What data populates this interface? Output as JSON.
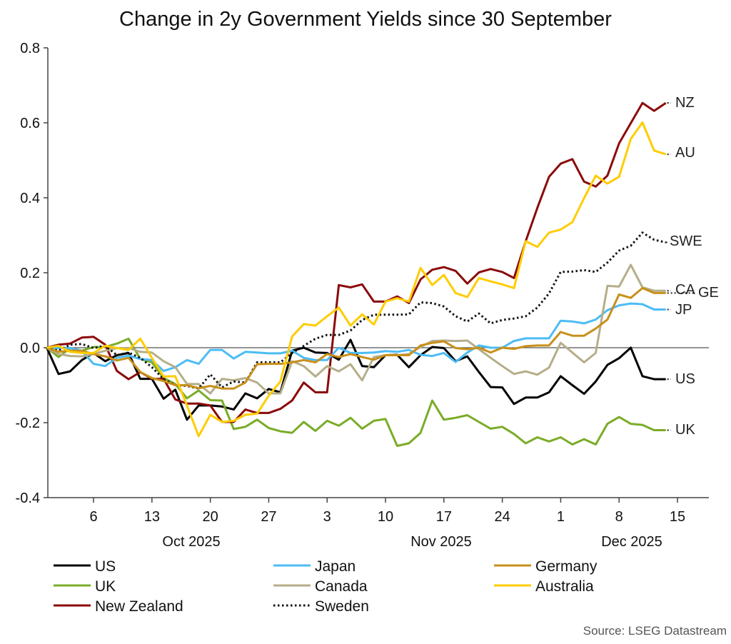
{
  "chart_data": {
    "type": "line",
    "title": "Change in 2y Government Yields since 30 September",
    "source": "Source: LSEG Datastream",
    "ylim": [
      -0.4,
      0.8
    ],
    "yticks": [
      "0.8",
      "0.6",
      "0.4",
      "0.2",
      "0.0",
      "-0.2",
      "-0.4"
    ],
    "ytick_values": [
      0.8,
      0.6,
      0.4,
      0.2,
      0,
      -0.2,
      -0.4
    ],
    "xtick_labels": [
      "6",
      "13",
      "20",
      "27",
      "3",
      "10",
      "17",
      "24",
      "1",
      "8",
      "15"
    ],
    "xtick_dates": [
      "2025-10-06",
      "2025-10-13",
      "2025-10-20",
      "2025-10-27",
      "2025-11-03",
      "2025-11-10",
      "2025-11-17",
      "2025-11-24",
      "2025-12-01",
      "2025-12-08",
      "2025-12-15"
    ],
    "month_labels": [
      "Oct 2025",
      "Nov 2025",
      "Dec 2025"
    ],
    "grid": false,
    "legend_position": "bottom",
    "x": [
      "2025-09-30",
      "2025-10-01",
      "2025-10-02",
      "2025-10-03",
      "2025-10-06",
      "2025-10-07",
      "2025-10-08",
      "2025-10-09",
      "2025-10-10",
      "2025-10-13",
      "2025-10-14",
      "2025-10-15",
      "2025-10-16",
      "2025-10-17",
      "2025-10-20",
      "2025-10-21",
      "2025-10-22",
      "2025-10-23",
      "2025-10-24",
      "2025-10-27",
      "2025-10-28",
      "2025-10-29",
      "2025-10-30",
      "2025-10-31",
      "2025-11-03",
      "2025-11-04",
      "2025-11-05",
      "2025-11-06",
      "2025-11-07",
      "2025-11-10",
      "2025-11-11",
      "2025-11-12",
      "2025-11-13",
      "2025-11-14",
      "2025-11-17",
      "2025-11-18",
      "2025-11-19",
      "2025-11-20",
      "2025-11-21",
      "2025-11-24",
      "2025-11-25",
      "2025-11-26",
      "2025-11-27",
      "2025-11-28",
      "2025-12-01",
      "2025-12-02",
      "2025-12-03",
      "2025-12-04",
      "2025-12-05",
      "2025-12-08",
      "2025-12-09",
      "2025-12-10",
      "2025-12-11",
      "2025-12-12"
    ],
    "series": [
      {
        "name": "US",
        "end_label": "US",
        "color": "#000000",
        "dotted": false,
        "values": [
          0,
          -0.07,
          -0.063,
          -0.033,
          -0.014,
          -0.036,
          -0.02,
          -0.014,
          -0.083,
          -0.083,
          -0.136,
          -0.112,
          -0.192,
          -0.154,
          -0.154,
          -0.157,
          -0.165,
          -0.122,
          -0.135,
          -0.11,
          -0.119,
          -0.008,
          0,
          -0.013,
          -0.014,
          -0.032,
          0.021,
          -0.049,
          -0.052,
          -0.02,
          -0.019,
          -0.052,
          -0.02,
          0.002,
          -0.001,
          -0.036,
          -0.023,
          -0.065,
          -0.105,
          -0.106,
          -0.15,
          -0.133,
          -0.133,
          -0.119,
          -0.076,
          -0.1,
          -0.123,
          -0.09,
          -0.046,
          -0.028,
          0,
          -0.076,
          -0.084,
          -0.084
        ]
      },
      {
        "name": "UK",
        "end_label": "UK",
        "color": "#7aac28",
        "dotted": false,
        "values": [
          0,
          -0.025,
          -0.001,
          -0.008,
          0.002,
          0.002,
          0.011,
          0.024,
          -0.03,
          -0.039,
          -0.081,
          -0.097,
          -0.135,
          -0.114,
          -0.14,
          -0.141,
          -0.217,
          -0.211,
          -0.192,
          -0.214,
          -0.223,
          -0.227,
          -0.198,
          -0.222,
          -0.195,
          -0.208,
          -0.187,
          -0.216,
          -0.195,
          -0.19,
          -0.262,
          -0.255,
          -0.227,
          -0.141,
          -0.192,
          -0.187,
          -0.18,
          -0.198,
          -0.216,
          -0.211,
          -0.23,
          -0.255,
          -0.239,
          -0.25,
          -0.239,
          -0.258,
          -0.244,
          -0.258,
          -0.203,
          -0.185,
          -0.203,
          -0.206,
          -0.22,
          -0.22
        ]
      },
      {
        "name": "New Zealand",
        "end_label": "NZ",
        "color": "#8b0a0a",
        "dotted": false,
        "values": [
          0,
          0.008,
          0.011,
          0.027,
          0.029,
          0.008,
          -0.062,
          -0.084,
          -0.065,
          -0.083,
          -0.083,
          -0.138,
          -0.149,
          -0.149,
          -0.154,
          -0.198,
          -0.198,
          -0.165,
          -0.174,
          -0.174,
          -0.163,
          -0.141,
          -0.093,
          -0.119,
          -0.119,
          0.167,
          0.161,
          0.169,
          0.123,
          0.123,
          0.137,
          0.119,
          0.182,
          0.208,
          0.215,
          0.205,
          0.171,
          0.201,
          0.21,
          0.202,
          0.186,
          0.284,
          0.373,
          0.456,
          0.491,
          0.503,
          0.443,
          0.43,
          0.459,
          0.545,
          0.599,
          0.653,
          0.632,
          0.653
        ]
      },
      {
        "name": "Japan",
        "end_label": "JP",
        "color": "#4cbcf5",
        "dotted": false,
        "values": [
          0,
          -0.001,
          -0.001,
          -0.008,
          -0.043,
          -0.049,
          -0.027,
          -0.021,
          -0.03,
          -0.033,
          -0.062,
          -0.052,
          -0.033,
          -0.043,
          -0.006,
          -0.006,
          -0.029,
          -0.011,
          -0.013,
          -0.015,
          -0.015,
          -0.008,
          -0.027,
          -0.033,
          -0.033,
          0,
          -0.014,
          -0.014,
          -0.013,
          -0.009,
          -0.011,
          -0.006,
          -0.019,
          -0.022,
          -0.014,
          -0.038,
          -0.013,
          0.006,
          0,
          0,
          0.018,
          0.025,
          0.025,
          0.025,
          0.072,
          0.07,
          0.065,
          0.075,
          0.1,
          0.113,
          0.118,
          0.116,
          0.102,
          0.102
        ]
      },
      {
        "name": "Canada",
        "end_label": "CA",
        "color": "#b5ae8a",
        "dotted": false,
        "values": [
          0,
          -0.017,
          -0.022,
          -0.023,
          -0.017,
          -0.008,
          -0.001,
          -0.001,
          -0.011,
          -0.013,
          -0.036,
          -0.052,
          -0.097,
          -0.097,
          -0.122,
          -0.083,
          -0.087,
          -0.081,
          -0.093,
          -0.122,
          -0.122,
          -0.036,
          -0.049,
          -0.077,
          -0.049,
          -0.063,
          -0.044,
          -0.087,
          -0.025,
          -0.02,
          -0.02,
          -0.017,
          0.002,
          0.018,
          0.019,
          0.018,
          0.019,
          -0.004,
          -0.027,
          -0.049,
          -0.07,
          -0.063,
          -0.072,
          -0.053,
          0.013,
          -0.013,
          -0.039,
          -0.014,
          0.165,
          0.163,
          0.221,
          0.161,
          0.152,
          0.152
        ]
      },
      {
        "name": "Sweden",
        "end_label": "SWE",
        "color": "#111111",
        "dotted": true,
        "values": [
          0,
          -0.008,
          0.008,
          0.01,
          -0.001,
          0.005,
          -0.02,
          -0.013,
          -0.027,
          -0.052,
          -0.084,
          -0.1,
          -0.102,
          -0.109,
          -0.071,
          -0.106,
          -0.09,
          -0.093,
          -0.039,
          -0.039,
          -0.039,
          -0.014,
          0.005,
          0.024,
          0.034,
          0.034,
          0.046,
          0.074,
          0.088,
          0.088,
          0.088,
          0.089,
          0.121,
          0.119,
          0.11,
          0.084,
          0.07,
          0.091,
          0.065,
          0.074,
          0.078,
          0.084,
          0.107,
          0.145,
          0.202,
          0.203,
          0.207,
          0.202,
          0.227,
          0.259,
          0.272,
          0.307,
          0.288,
          0.281
        ]
      },
      {
        "name": "Germany",
        "end_label": "GE",
        "color": "#c8901a",
        "dotted": false,
        "values": [
          0,
          -0.011,
          -0.008,
          -0.008,
          -0.017,
          -0.023,
          -0.034,
          -0.027,
          -0.065,
          -0.081,
          -0.089,
          -0.1,
          -0.1,
          -0.108,
          -0.102,
          -0.109,
          -0.109,
          -0.093,
          -0.044,
          -0.043,
          -0.043,
          -0.039,
          -0.033,
          -0.039,
          -0.017,
          -0.025,
          -0.017,
          -0.025,
          -0.032,
          -0.02,
          -0.02,
          -0.02,
          0.006,
          0.013,
          0.017,
          -0.001,
          -0.004,
          0,
          -0.013,
          0,
          -0.003,
          0.004,
          0.006,
          0.006,
          0.042,
          0.032,
          0.032,
          0.051,
          0.075,
          0.142,
          0.133,
          0.159,
          0.146,
          0.146
        ]
      },
      {
        "name": "Australia",
        "end_label": "AU",
        "color": "#ffcc00",
        "dotted": false,
        "values": [
          0,
          0.005,
          -0.011,
          -0.014,
          -0.014,
          0.005,
          -0.001,
          -0.006,
          0.024,
          -0.027,
          -0.077,
          -0.076,
          -0.154,
          -0.236,
          -0.179,
          -0.198,
          -0.195,
          -0.179,
          -0.176,
          -0.128,
          -0.09,
          0.03,
          0.063,
          0.059,
          0.084,
          0.107,
          0.059,
          0.089,
          0.062,
          0.123,
          0.132,
          0.123,
          0.213,
          0.167,
          0.194,
          0.146,
          0.135,
          0.186,
          0.177,
          0.169,
          0.159,
          0.284,
          0.269,
          0.307,
          0.315,
          0.335,
          0.399,
          0.459,
          0.438,
          0.456,
          0.557,
          0.601,
          0.526,
          0.516
        ]
      }
    ]
  }
}
